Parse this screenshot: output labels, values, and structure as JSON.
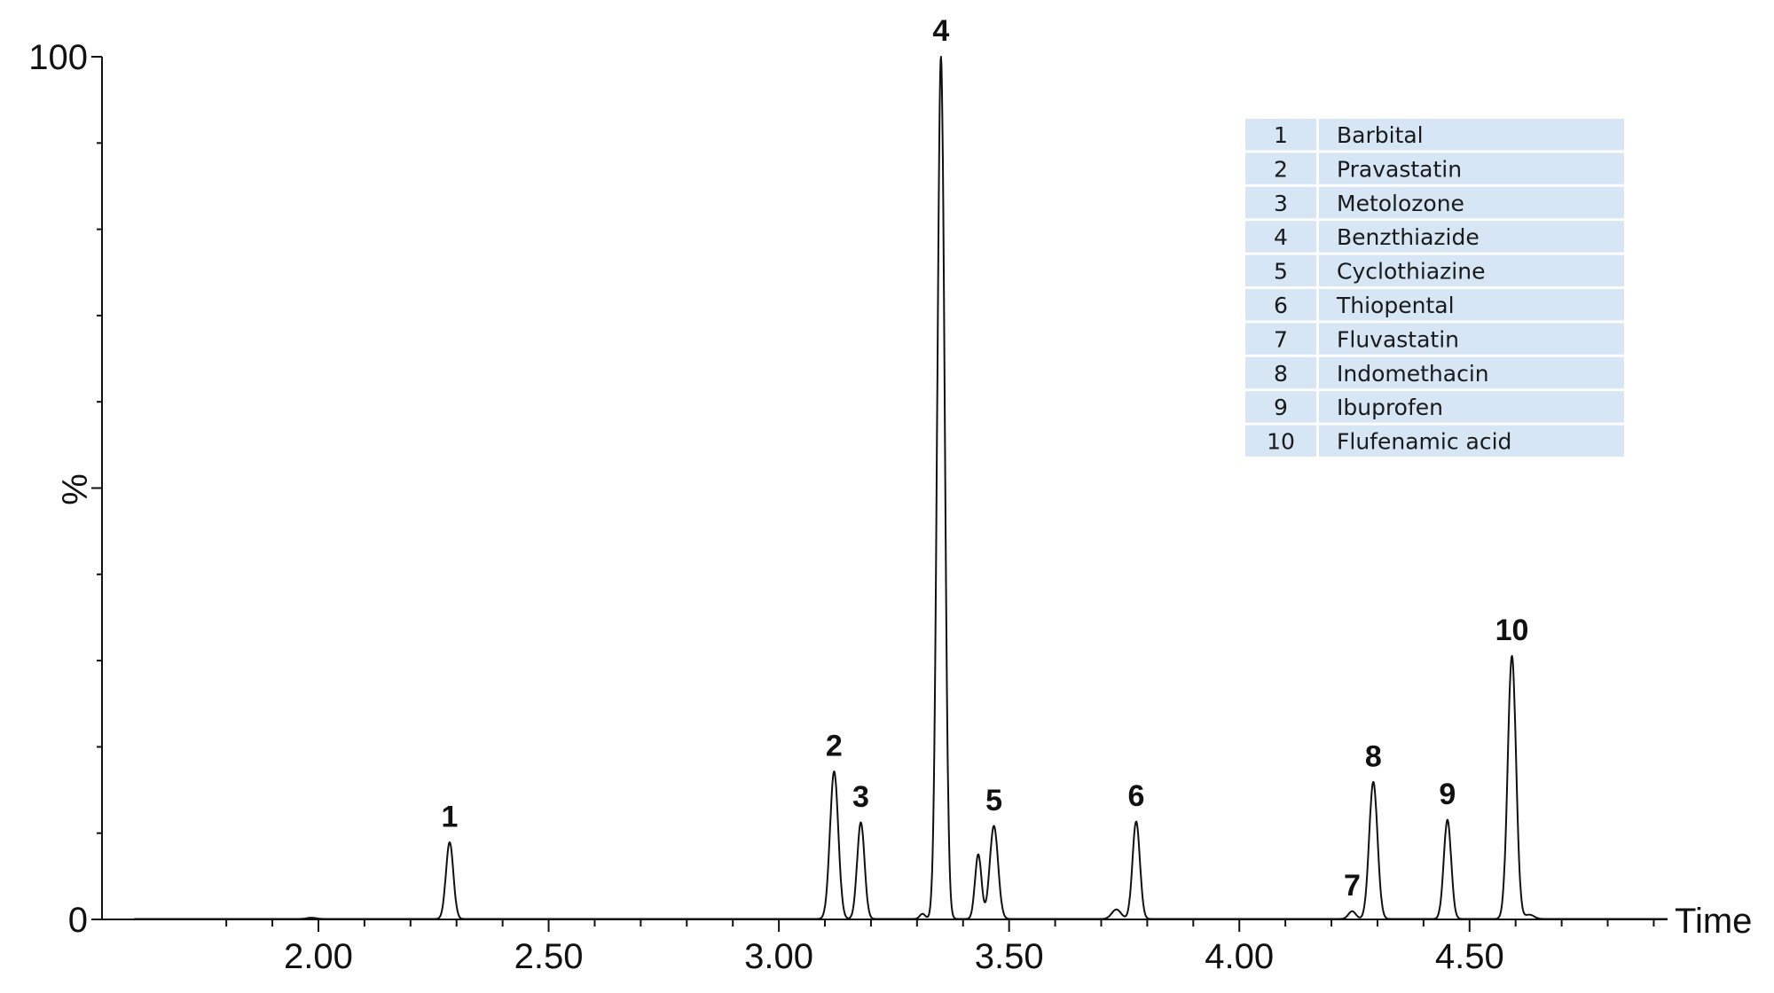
{
  "chart_data": {
    "type": "line",
    "xlabel": "Time",
    "ylabel": "%",
    "xlim": [
      1.53,
      4.93
    ],
    "ylim": [
      0,
      100
    ],
    "x_ticks": [
      2.0,
      2.5,
      3.0,
      3.5,
      4.0,
      4.5
    ],
    "x_tick_labels": [
      "2.00",
      "2.50",
      "3.00",
      "3.50",
      "4.00",
      "4.50"
    ],
    "y_ticks": [
      0,
      100
    ],
    "y_tick_labels": [
      "0",
      "100"
    ],
    "grid": false,
    "peaks": [
      {
        "label": "1",
        "rt": 2.285,
        "height": 8.9,
        "width": 0.008
      },
      {
        "label": "2",
        "rt": 3.12,
        "height": 17.1,
        "width": 0.009
      },
      {
        "label": "3",
        "rt": 3.178,
        "height": 11.2,
        "width": 0.008
      },
      {
        "label": "4",
        "rt": 3.352,
        "height": 100,
        "width": 0.008
      },
      {
        "label": "5",
        "rt": 3.467,
        "height": 10.8,
        "width": 0.009
      },
      {
        "label": "6",
        "rt": 3.776,
        "height": 11.3,
        "width": 0.008
      },
      {
        "label": "7",
        "rt": 4.245,
        "height": 0.9,
        "width": 0.008
      },
      {
        "label": "8",
        "rt": 4.291,
        "height": 15.9,
        "width": 0.009
      },
      {
        "label": "9",
        "rt": 4.452,
        "height": 11.5,
        "width": 0.008
      },
      {
        "label": "10",
        "rt": 4.592,
        "height": 30.5,
        "width": 0.009
      }
    ],
    "minor_peaks": [
      {
        "rt": 1.985,
        "height": 0.15,
        "width": 0.01
      },
      {
        "rt": 3.312,
        "height": 0.6,
        "width": 0.006
      },
      {
        "rt": 3.433,
        "height": 7.5,
        "width": 0.007
      },
      {
        "rt": 3.733,
        "height": 1.1,
        "width": 0.01
      },
      {
        "rt": 4.63,
        "height": 0.5,
        "width": 0.01
      }
    ],
    "legend": {
      "placement": "top-right",
      "entries": [
        {
          "num": "1",
          "name": "Barbital"
        },
        {
          "num": "2",
          "name": "Pravastatin"
        },
        {
          "num": "3",
          "name": "Metolozone"
        },
        {
          "num": "4",
          "name": "Benzthiazide"
        },
        {
          "num": "5",
          "name": "Cyclothiazine"
        },
        {
          "num": "6",
          "name": "Thiopental"
        },
        {
          "num": "7",
          "name": "Fluvastatin"
        },
        {
          "num": "8",
          "name": "Indomethacin"
        },
        {
          "num": "9",
          "name": "Ibuprofen"
        },
        {
          "num": "10",
          "name": "Flufenamic acid"
        }
      ]
    },
    "colors": {
      "trace": "#111111",
      "legend_fill": "#d6e6f5"
    }
  }
}
